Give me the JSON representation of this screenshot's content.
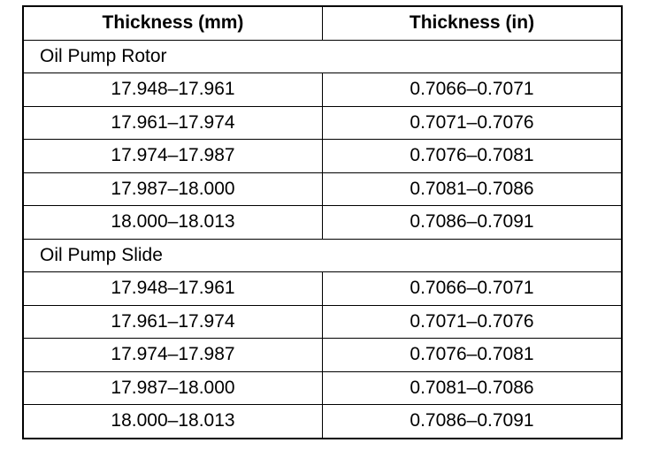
{
  "table": {
    "header": [
      "Thickness (mm)",
      "Thickness (in)"
    ],
    "sections": [
      {
        "title": "Oil Pump Rotor",
        "rows": [
          [
            "17.948–17.961",
            "0.7066–0.7071"
          ],
          [
            "17.961–17.974",
            "0.7071–0.7076"
          ],
          [
            "17.974–17.987",
            "0.7076–0.7081"
          ],
          [
            "17.987–18.000",
            "0.7081–0.7086"
          ],
          [
            "18.000–18.013",
            "0.7086–0.7091"
          ]
        ]
      },
      {
        "title": "Oil Pump Slide",
        "rows": [
          [
            "17.948–17.961",
            "0.7066–0.7071"
          ],
          [
            "17.961–17.974",
            "0.7071–0.7076"
          ],
          [
            "17.974–17.987",
            "0.7076–0.7081"
          ],
          [
            "17.987–18.000",
            "0.7081–0.7086"
          ],
          [
            "18.000–18.013",
            "0.7086–0.7091"
          ]
        ]
      }
    ]
  }
}
